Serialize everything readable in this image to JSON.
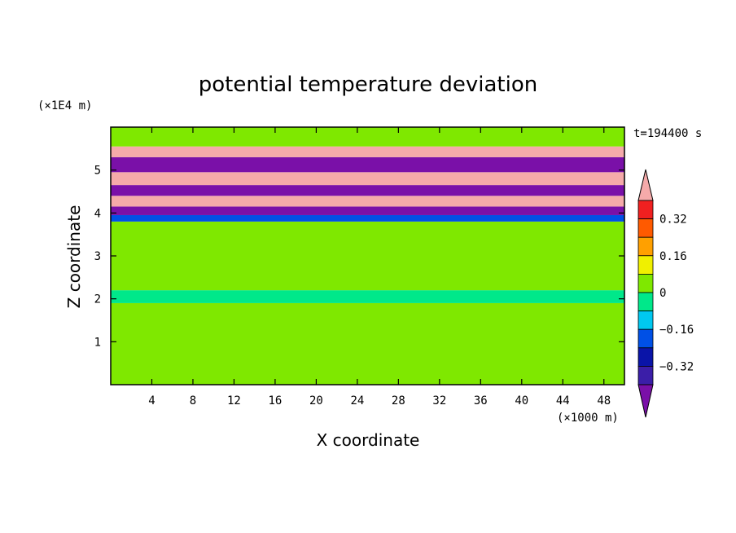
{
  "chart_data": {
    "type": "heatmap",
    "title": "potential temperature deviation",
    "xlabel": "X coordinate",
    "ylabel": "Z coordinate",
    "x_unit": "(×1000 m)",
    "y_unit": "(×1E4 m)",
    "time_label": "t=194400 s",
    "xlim": [
      0,
      50
    ],
    "ylim": [
      0,
      6
    ],
    "x_ticks": [
      4,
      8,
      12,
      16,
      20,
      24,
      28,
      32,
      36,
      40,
      44,
      48
    ],
    "y_ticks": [
      1,
      2,
      3,
      4,
      5
    ],
    "colorbar": {
      "levels": [
        "<-0.40",
        "-0.40",
        "-0.32",
        "-0.24",
        "-0.16",
        "-0.08",
        "0",
        "0.08",
        "0.16",
        "0.24",
        "0.32",
        ">0.40"
      ],
      "colors": [
        "#7a10a8",
        "#3b1ea8",
        "#0a14a8",
        "#0050e6",
        "#00c8f0",
        "#00e88a",
        "#7fe800",
        "#f0f000",
        "#ffa000",
        "#ff5a00",
        "#f02020",
        "#f5aaaa"
      ],
      "tick_values": [
        -0.32,
        -0.16,
        0,
        0.16,
        0.32
      ],
      "tick_labels": [
        "−0.32",
        "−0.16",
        "0",
        "0.16",
        "0.32"
      ]
    },
    "grid": false,
    "legend": "colorbar-right",
    "layers": [
      {
        "z": [
          0.0,
          1.9
        ],
        "value": 0.02
      },
      {
        "z": [
          1.9,
          2.2
        ],
        "value": -0.02
      },
      {
        "z": [
          2.2,
          3.8
        ],
        "value": 0.0
      },
      {
        "z": [
          3.8,
          3.95
        ],
        "value": -0.2
      },
      {
        "z": [
          3.95,
          4.15
        ],
        "value": -0.45
      },
      {
        "z": [
          4.15,
          4.4
        ],
        "value": 0.45
      },
      {
        "z": [
          4.4,
          4.65
        ],
        "value": -0.45
      },
      {
        "z": [
          4.65,
          4.95
        ],
        "value": 0.45
      },
      {
        "z": [
          4.95,
          5.3
        ],
        "value": -0.45
      },
      {
        "z": [
          5.3,
          5.55
        ],
        "value": 0.45
      },
      {
        "z": [
          5.55,
          6.0
        ],
        "value": 0.02
      }
    ]
  }
}
